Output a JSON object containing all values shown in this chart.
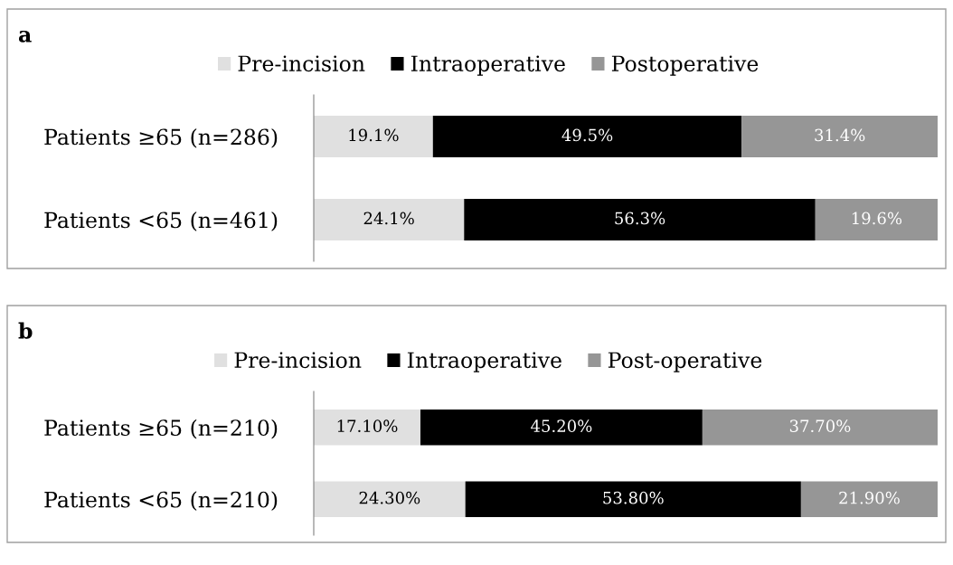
{
  "chart_data": [
    {
      "type": "bar",
      "title": "a",
      "orientation": "horizontal",
      "stacked": true,
      "legend": "top",
      "xlim": [
        0,
        100
      ],
      "tick_labels": "y",
      "categories": [
        "Patients ≥65 (n=286)",
        "Patients <65 (n=461)"
      ],
      "series": [
        {
          "name": "Pre-incision",
          "color": "#e0e0e0",
          "values": [
            19.1,
            24.1
          ],
          "value_labels": [
            "19.1%",
            "24.1%"
          ]
        },
        {
          "name": "Intraoperative",
          "color": "#000000",
          "values": [
            49.5,
            56.3
          ],
          "value_labels": [
            "49.5%",
            "56.3%"
          ]
        },
        {
          "name": "Postoperative",
          "color": "#969696",
          "values": [
            31.4,
            19.6
          ],
          "value_labels": [
            "31.4%",
            "19.6%"
          ]
        }
      ]
    },
    {
      "type": "bar",
      "title": "b",
      "orientation": "horizontal",
      "stacked": true,
      "legend": "top",
      "xlim": [
        0,
        100
      ],
      "tick_labels": "y",
      "categories": [
        "Patients ≥65 (n=210)",
        "Patients <65 (n=210)"
      ],
      "series": [
        {
          "name": "Pre-incision",
          "color": "#e0e0e0",
          "values": [
            17.1,
            24.3
          ],
          "value_labels": [
            "17.10%",
            "24.30%"
          ]
        },
        {
          "name": "Intraoperative",
          "color": "#000000",
          "values": [
            45.2,
            53.8
          ],
          "value_labels": [
            "45.20%",
            "53.80%"
          ]
        },
        {
          "name": "Post-operative",
          "color": "#969696",
          "values": [
            37.7,
            21.9
          ],
          "value_labels": [
            "37.70%",
            "21.90%"
          ]
        }
      ]
    }
  ]
}
